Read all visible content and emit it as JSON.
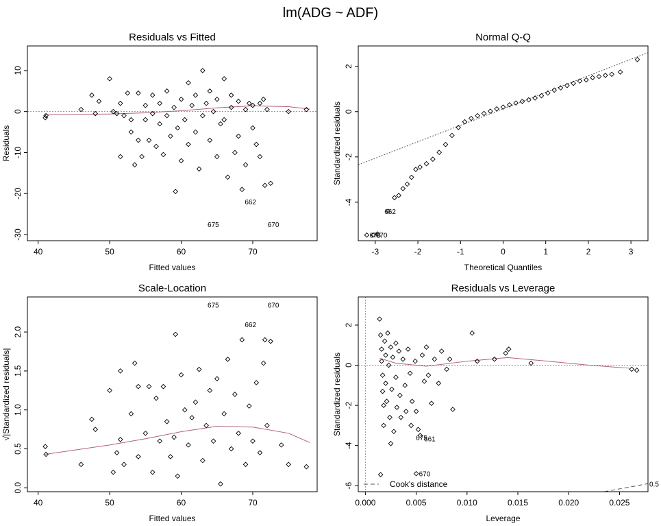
{
  "figure": {
    "title": "lm(ADG ~ ADF)"
  },
  "chart_data": [
    {
      "type": "scatter",
      "title": "Residuals vs Fitted",
      "xlabel": "Fitted values",
      "ylabel": "Residuals",
      "xlim": [
        38.5,
        79
      ],
      "ylim": [
        -31.5,
        16
      ],
      "xticks": [
        40,
        50,
        60,
        70
      ],
      "yticks": [
        -30,
        -20,
        -10,
        0,
        10
      ],
      "reference_line_y": 0,
      "smoother": {
        "x": [
          41,
          50,
          55,
          60,
          65,
          70,
          75,
          78
        ],
        "y": [
          -0.8,
          -0.6,
          -0.3,
          0.2,
          0.9,
          1.4,
          1.2,
          0.6
        ]
      },
      "labeled_points": [
        {
          "label": "662",
          "x": 68.5,
          "y": -22
        },
        {
          "label": "675",
          "x": 63.3,
          "y": -27.5
        },
        {
          "label": "670",
          "x": 71.7,
          "y": -27.5
        }
      ],
      "points": [
        {
          "x": 41,
          "y": -1.5
        },
        {
          "x": 41.1,
          "y": -1
        },
        {
          "x": 46,
          "y": 0.5
        },
        {
          "x": 47.5,
          "y": 4
        },
        {
          "x": 48,
          "y": -0.5
        },
        {
          "x": 48.5,
          "y": 2.5
        },
        {
          "x": 50,
          "y": 8
        },
        {
          "x": 50.5,
          "y": 0
        },
        {
          "x": 51,
          "y": -0.5
        },
        {
          "x": 51.5,
          "y": -11
        },
        {
          "x": 51.5,
          "y": 2
        },
        {
          "x": 52,
          "y": -1
        },
        {
          "x": 52.5,
          "y": 4.5
        },
        {
          "x": 53,
          "y": -5
        },
        {
          "x": 53,
          "y": -2
        },
        {
          "x": 53.5,
          "y": -13
        },
        {
          "x": 54,
          "y": -7
        },
        {
          "x": 54,
          "y": 4.5
        },
        {
          "x": 54.5,
          "y": -11
        },
        {
          "x": 55,
          "y": -2
        },
        {
          "x": 55,
          "y": 1.5
        },
        {
          "x": 55.5,
          "y": -7
        },
        {
          "x": 56,
          "y": -0.5
        },
        {
          "x": 56,
          "y": 4
        },
        {
          "x": 56.5,
          "y": -8.5
        },
        {
          "x": 57,
          "y": -3
        },
        {
          "x": 57,
          "y": 2
        },
        {
          "x": 57.5,
          "y": -10.5
        },
        {
          "x": 58,
          "y": 5
        },
        {
          "x": 58,
          "y": -1
        },
        {
          "x": 58.5,
          "y": -6
        },
        {
          "x": 59,
          "y": 1
        },
        {
          "x": 59.2,
          "y": -19.5
        },
        {
          "x": 59.5,
          "y": -4
        },
        {
          "x": 60,
          "y": -12
        },
        {
          "x": 60,
          "y": 3
        },
        {
          "x": 60.5,
          "y": -2
        },
        {
          "x": 61,
          "y": 7
        },
        {
          "x": 61,
          "y": -8
        },
        {
          "x": 61.5,
          "y": 1.5
        },
        {
          "x": 62,
          "y": -5
        },
        {
          "x": 62,
          "y": 4
        },
        {
          "x": 62.5,
          "y": -14
        },
        {
          "x": 63,
          "y": 10
        },
        {
          "x": 63,
          "y": -1
        },
        {
          "x": 63.5,
          "y": 2
        },
        {
          "x": 64,
          "y": -7
        },
        {
          "x": 64,
          "y": 5
        },
        {
          "x": 64.5,
          "y": 0
        },
        {
          "x": 65,
          "y": -11
        },
        {
          "x": 65,
          "y": 3
        },
        {
          "x": 65.5,
          "y": -3
        },
        {
          "x": 66,
          "y": 8
        },
        {
          "x": 66,
          "y": -2
        },
        {
          "x": 66.5,
          "y": -16
        },
        {
          "x": 67,
          "y": 1
        },
        {
          "x": 67,
          "y": 4
        },
        {
          "x": 67.5,
          "y": -10
        },
        {
          "x": 68,
          "y": -6
        },
        {
          "x": 68,
          "y": 2.5
        },
        {
          "x": 68.5,
          "y": -19
        },
        {
          "x": 69,
          "y": 0.5
        },
        {
          "x": 69,
          "y": -13
        },
        {
          "x": 69.5,
          "y": 2
        },
        {
          "x": 70,
          "y": -4
        },
        {
          "x": 70,
          "y": 1.5
        },
        {
          "x": 70.5,
          "y": -8
        },
        {
          "x": 71,
          "y": 2
        },
        {
          "x": 71,
          "y": -11
        },
        {
          "x": 71.5,
          "y": 3
        },
        {
          "x": 71.7,
          "y": -18
        },
        {
          "x": 72,
          "y": 0.5
        },
        {
          "x": 72.5,
          "y": -17.5
        },
        {
          "x": 75,
          "y": 0
        },
        {
          "x": 77.5,
          "y": 0.5
        }
      ]
    },
    {
      "type": "scatter",
      "title": "Normal Q-Q",
      "xlabel": "Theoretical Quantiles",
      "ylabel": "Standardized residuals",
      "xlim": [
        -3.4,
        3.4
      ],
      "ylim": [
        -5.7,
        2.9
      ],
      "xticks": [
        -3,
        -2,
        -1,
        0,
        1,
        2,
        3
      ],
      "yticks": [
        -4,
        -2,
        0,
        2
      ],
      "reference_line": {
        "x": [
          -3.4,
          3.4
        ],
        "y": [
          -2.35,
          2.6
        ]
      },
      "labeled_points": [
        {
          "label": "662",
          "x": -2.85,
          "y": -4.4
        },
        {
          "label": "670",
          "x": -3.05,
          "y": -5.45
        },
        {
          "label": "675",
          "x": -3.2,
          "y": -5.45
        }
      ],
      "points": [
        {
          "x": -3.2,
          "y": -5.45
        },
        {
          "x": -3.05,
          "y": -5.45
        },
        {
          "x": -2.95,
          "y": -5.4
        },
        {
          "x": -2.7,
          "y": -4.4
        },
        {
          "x": -2.55,
          "y": -3.8
        },
        {
          "x": -2.45,
          "y": -3.7
        },
        {
          "x": -2.35,
          "y": -3.4
        },
        {
          "x": -2.25,
          "y": -3.2
        },
        {
          "x": -2.15,
          "y": -2.9
        },
        {
          "x": -2.05,
          "y": -2.55
        },
        {
          "x": -1.95,
          "y": -2.45
        },
        {
          "x": -1.8,
          "y": -2.3
        },
        {
          "x": -1.65,
          "y": -2.1
        },
        {
          "x": -1.5,
          "y": -1.8
        },
        {
          "x": -1.35,
          "y": -1.45
        },
        {
          "x": -1.2,
          "y": -1.05
        },
        {
          "x": -1.05,
          "y": -0.7
        },
        {
          "x": -0.9,
          "y": -0.45
        },
        {
          "x": -0.75,
          "y": -0.3
        },
        {
          "x": -0.6,
          "y": -0.18
        },
        {
          "x": -0.45,
          "y": -0.08
        },
        {
          "x": -0.3,
          "y": 0.02
        },
        {
          "x": -0.15,
          "y": 0.12
        },
        {
          "x": 0,
          "y": 0.2
        },
        {
          "x": 0.15,
          "y": 0.3
        },
        {
          "x": 0.3,
          "y": 0.38
        },
        {
          "x": 0.45,
          "y": 0.45
        },
        {
          "x": 0.6,
          "y": 0.52
        },
        {
          "x": 0.75,
          "y": 0.6
        },
        {
          "x": 0.9,
          "y": 0.7
        },
        {
          "x": 1.05,
          "y": 0.82
        },
        {
          "x": 1.2,
          "y": 0.95
        },
        {
          "x": 1.35,
          "y": 1.05
        },
        {
          "x": 1.5,
          "y": 1.15
        },
        {
          "x": 1.65,
          "y": 1.25
        },
        {
          "x": 1.8,
          "y": 1.35
        },
        {
          "x": 1.95,
          "y": 1.4
        },
        {
          "x": 2.1,
          "y": 1.5
        },
        {
          "x": 2.25,
          "y": 1.55
        },
        {
          "x": 2.4,
          "y": 1.6
        },
        {
          "x": 2.55,
          "y": 1.65
        },
        {
          "x": 2.75,
          "y": 1.75
        },
        {
          "x": 3.15,
          "y": 2.3
        }
      ]
    },
    {
      "type": "scatter",
      "title": "Scale-Location",
      "xlabel": "Fitted values",
      "ylabel": "√|Standardized residuals|",
      "xlim": [
        38.5,
        79
      ],
      "ylim": [
        -0.05,
        2.45
      ],
      "xticks": [
        40,
        50,
        60,
        70
      ],
      "yticks": [
        0.0,
        0.5,
        1.0,
        1.5,
        2.0
      ],
      "ytick_labels": [
        "0.0",
        "0.5",
        "1.0",
        "1.5",
        "2.0"
      ],
      "smoother": {
        "x": [
          41,
          50,
          55,
          60,
          65,
          70,
          75,
          78
        ],
        "y": [
          0.43,
          0.55,
          0.63,
          0.72,
          0.79,
          0.78,
          0.7,
          0.58
        ]
      },
      "labeled_points": [
        {
          "label": "675",
          "x": 63.3,
          "y": 2.35
        },
        {
          "label": "670",
          "x": 71.7,
          "y": 2.35
        },
        {
          "label": "662",
          "x": 68.5,
          "y": 2.1
        }
      ],
      "points": [
        {
          "x": 41,
          "y": 0.53
        },
        {
          "x": 41.1,
          "y": 0.43
        },
        {
          "x": 46,
          "y": 0.3
        },
        {
          "x": 47.5,
          "y": 0.88
        },
        {
          "x": 48,
          "y": 0.75
        },
        {
          "x": 50,
          "y": 1.25
        },
        {
          "x": 50.5,
          "y": 0.2
        },
        {
          "x": 51,
          "y": 0.45
        },
        {
          "x": 51.5,
          "y": 1.5
        },
        {
          "x": 51.5,
          "y": 0.62
        },
        {
          "x": 52,
          "y": 0.3
        },
        {
          "x": 53,
          "y": 0.95
        },
        {
          "x": 53.5,
          "y": 1.6
        },
        {
          "x": 54,
          "y": 1.3
        },
        {
          "x": 54,
          "y": 0.4
        },
        {
          "x": 55,
          "y": 0.7
        },
        {
          "x": 55.5,
          "y": 1.3
        },
        {
          "x": 56,
          "y": 0.2
        },
        {
          "x": 56.5,
          "y": 1.15
        },
        {
          "x": 57,
          "y": 0.6
        },
        {
          "x": 57.5,
          "y": 1.3
        },
        {
          "x": 58,
          "y": 0.85
        },
        {
          "x": 58.5,
          "y": 0.4
        },
        {
          "x": 59,
          "y": 0.65
        },
        {
          "x": 59.2,
          "y": 1.97
        },
        {
          "x": 59.5,
          "y": 0.15
        },
        {
          "x": 60,
          "y": 1.45
        },
        {
          "x": 60.5,
          "y": 1.0
        },
        {
          "x": 61,
          "y": 0.55
        },
        {
          "x": 61.5,
          "y": 0.9
        },
        {
          "x": 62,
          "y": 1.1
        },
        {
          "x": 62.5,
          "y": 1.52
        },
        {
          "x": 63,
          "y": 0.35
        },
        {
          "x": 63.5,
          "y": 0.8
        },
        {
          "x": 64,
          "y": 1.25
        },
        {
          "x": 64.5,
          "y": 0.6
        },
        {
          "x": 65,
          "y": 1.4
        },
        {
          "x": 65.5,
          "y": 0.05
        },
        {
          "x": 66,
          "y": 0.95
        },
        {
          "x": 66.5,
          "y": 1.65
        },
        {
          "x": 67,
          "y": 0.5
        },
        {
          "x": 67.5,
          "y": 1.2
        },
        {
          "x": 68,
          "y": 0.7
        },
        {
          "x": 68.5,
          "y": 1.9
        },
        {
          "x": 69,
          "y": 0.3
        },
        {
          "x": 69.5,
          "y": 1.05
        },
        {
          "x": 70,
          "y": 0.6
        },
        {
          "x": 70.5,
          "y": 1.35
        },
        {
          "x": 71,
          "y": 0.45
        },
        {
          "x": 71.5,
          "y": 1.6
        },
        {
          "x": 71.7,
          "y": 1.9
        },
        {
          "x": 72,
          "y": 0.8
        },
        {
          "x": 72.5,
          "y": 1.88
        },
        {
          "x": 74,
          "y": 0.55
        },
        {
          "x": 75,
          "y": 0.3
        },
        {
          "x": 77.5,
          "y": 0.27
        }
      ]
    },
    {
      "type": "scatter",
      "title": "Residuals vs Leverage",
      "xlabel": "Leverage",
      "ylabel": "Standardized residuals",
      "xlim": [
        -0.0007,
        0.0278
      ],
      "ylim": [
        -6.3,
        3.4
      ],
      "xticks": [
        0.0,
        0.005,
        0.01,
        0.015,
        0.02,
        0.025
      ],
      "xtick_labels": [
        "0.000",
        "0.005",
        "0.010",
        "0.015",
        "0.020",
        "0.025"
      ],
      "yticks": [
        -6,
        -4,
        -2,
        0,
        2
      ],
      "reference_line_y": 0,
      "legend": {
        "label": "Cook's distance",
        "placement": "bottom-left"
      },
      "cooks_label": "0.5",
      "cooks_curve": {
        "x": [
          0.0235,
          0.0278
        ],
        "y": [
          -6.3,
          -5.9
        ]
      },
      "smoother": {
        "x": [
          0.0014,
          0.003,
          0.006,
          0.01,
          0.014,
          0.018,
          0.022,
          0.026
        ],
        "y": [
          0.35,
          0.1,
          -0.05,
          0.2,
          0.38,
          0.2,
          0.0,
          -0.15
        ]
      },
      "labeled_points": [
        {
          "label": "675",
          "x": 0.0047,
          "y": -3.6
        },
        {
          "label": "661",
          "x": 0.0055,
          "y": -3.65
        },
        {
          "label": "670",
          "x": 0.005,
          "y": -5.4
        }
      ],
      "points": [
        {
          "x": 0.0014,
          "y": 2.3
        },
        {
          "x": 0.0015,
          "y": 1.5
        },
        {
          "x": 0.0016,
          "y": 0.8
        },
        {
          "x": 0.0016,
          "y": 0.2
        },
        {
          "x": 0.0017,
          "y": -0.5
        },
        {
          "x": 0.0017,
          "y": -1.3
        },
        {
          "x": 0.0018,
          "y": -2.0
        },
        {
          "x": 0.0018,
          "y": -3.0
        },
        {
          "x": 0.0015,
          "y": -5.45
        },
        {
          "x": 0.0019,
          "y": 1.2
        },
        {
          "x": 0.002,
          "y": 0.5
        },
        {
          "x": 0.002,
          "y": -0.9
        },
        {
          "x": 0.0021,
          "y": -1.8
        },
        {
          "x": 0.0022,
          "y": 1.6
        },
        {
          "x": 0.0023,
          "y": 0.0
        },
        {
          "x": 0.0024,
          "y": -2.6
        },
        {
          "x": 0.0025,
          "y": -3.9
        },
        {
          "x": 0.0025,
          "y": 0.9
        },
        {
          "x": 0.0026,
          "y": -1.2
        },
        {
          "x": 0.0027,
          "y": 0.4
        },
        {
          "x": 0.0028,
          "y": -3.3
        },
        {
          "x": 0.003,
          "y": 1.1
        },
        {
          "x": 0.003,
          "y": -0.6
        },
        {
          "x": 0.0031,
          "y": -2.1
        },
        {
          "x": 0.0033,
          "y": 0.7
        },
        {
          "x": 0.0034,
          "y": -1.5
        },
        {
          "x": 0.0035,
          "y": -2.6
        },
        {
          "x": 0.0037,
          "y": 0.3
        },
        {
          "x": 0.0039,
          "y": -1.0
        },
        {
          "x": 0.004,
          "y": -2.3
        },
        {
          "x": 0.0042,
          "y": 0.8
        },
        {
          "x": 0.0044,
          "y": -0.4
        },
        {
          "x": 0.0045,
          "y": -3.0
        },
        {
          "x": 0.0046,
          "y": -1.8
        },
        {
          "x": 0.0049,
          "y": 0.2
        },
        {
          "x": 0.005,
          "y": -2.3
        },
        {
          "x": 0.005,
          "y": -5.4
        },
        {
          "x": 0.0052,
          "y": -3.2
        },
        {
          "x": 0.0054,
          "y": -3.5
        },
        {
          "x": 0.0056,
          "y": 0.5
        },
        {
          "x": 0.0058,
          "y": -0.8
        },
        {
          "x": 0.006,
          "y": 0.9
        },
        {
          "x": 0.0062,
          "y": -0.5
        },
        {
          "x": 0.0065,
          "y": -1.9
        },
        {
          "x": 0.0068,
          "y": 0.3
        },
        {
          "x": 0.0072,
          "y": -0.9
        },
        {
          "x": 0.0075,
          "y": 0.7
        },
        {
          "x": 0.008,
          "y": -0.2
        },
        {
          "x": 0.0083,
          "y": 0.3
        },
        {
          "x": 0.0086,
          "y": -2.2
        },
        {
          "x": 0.0105,
          "y": 1.6
        },
        {
          "x": 0.011,
          "y": 0.2
        },
        {
          "x": 0.0127,
          "y": 0.3
        },
        {
          "x": 0.0138,
          "y": 0.6
        },
        {
          "x": 0.0141,
          "y": 0.8
        },
        {
          "x": 0.0163,
          "y": 0.1
        },
        {
          "x": 0.0262,
          "y": -0.2
        },
        {
          "x": 0.0267,
          "y": -0.25
        }
      ]
    }
  ],
  "colors": {
    "points": "#000000",
    "smoother": "#b06080",
    "refline": "#909090",
    "axis": "#000000"
  }
}
